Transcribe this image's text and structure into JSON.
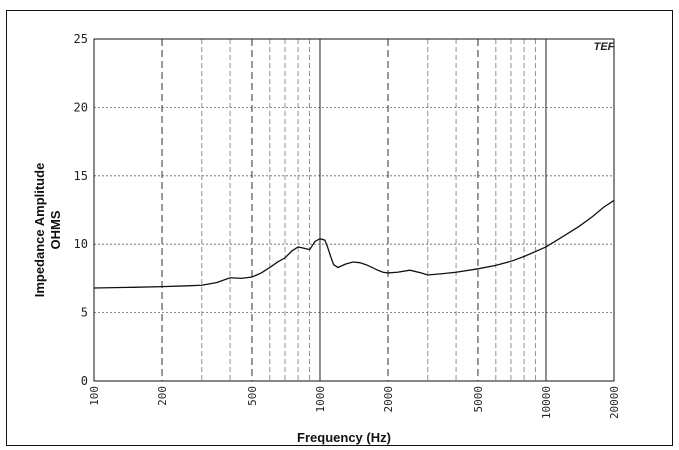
{
  "chart_data": {
    "type": "line",
    "title": "",
    "xlabel": "Frequency (Hz)",
    "ylabel": "Impedance Amplitude",
    "ylabel_unit": "OHMS",
    "x_scale": "log",
    "xlim": [
      100,
      20000
    ],
    "ylim": [
      0,
      25
    ],
    "grid": true,
    "watermark": "TEF",
    "x_ticks": [
      100,
      200,
      500,
      1000,
      2000,
      5000,
      10000,
      20000
    ],
    "x_tick_labels": [
      "100",
      "200",
      "500",
      "1000",
      "2000",
      "5000",
      "10000",
      "20000"
    ],
    "y_ticks": [
      0,
      5,
      10,
      15,
      20,
      25
    ],
    "y_tick_labels": [
      "0",
      "5",
      "10",
      "15",
      "20",
      "25"
    ],
    "series": [
      {
        "color": "#111111",
        "x": [
          100,
          150,
          200,
          250,
          300,
          350,
          400,
          450,
          500,
          550,
          600,
          650,
          700,
          750,
          800,
          850,
          900,
          950,
          1000,
          1050,
          1080,
          1120,
          1150,
          1200,
          1300,
          1400,
          1500,
          1600,
          1700,
          1800,
          1900,
          2000,
          2200,
          2500,
          2800,
          3000,
          3500,
          4000,
          5000,
          6000,
          7000,
          8000,
          10000,
          12000,
          14000,
          16000,
          18000,
          20000
        ],
        "y": [
          6.8,
          6.85,
          6.9,
          6.95,
          7.0,
          7.2,
          7.55,
          7.5,
          7.6,
          7.9,
          8.3,
          8.7,
          9.0,
          9.5,
          9.8,
          9.7,
          9.6,
          10.2,
          10.4,
          10.3,
          9.8,
          9.0,
          8.5,
          8.3,
          8.55,
          8.7,
          8.65,
          8.5,
          8.3,
          8.1,
          7.95,
          7.9,
          7.95,
          8.1,
          7.9,
          7.75,
          7.85,
          7.95,
          8.2,
          8.45,
          8.75,
          9.1,
          9.8,
          10.6,
          11.3,
          12.0,
          12.7,
          13.2
        ]
      }
    ]
  }
}
